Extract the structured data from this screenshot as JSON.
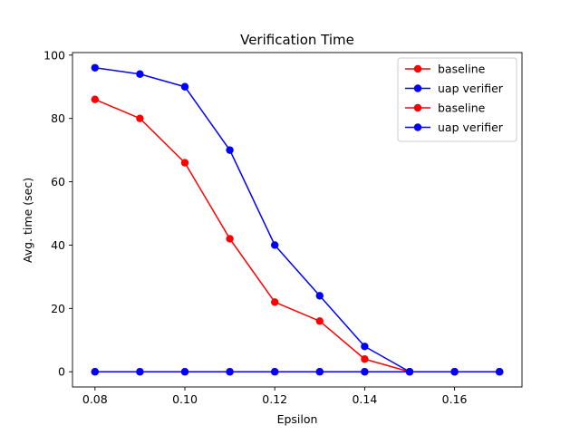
{
  "chart_data": {
    "type": "line",
    "title": "Verification Time",
    "xlabel": "Epsilon",
    "ylabel": "Avg. time (sec)",
    "xlim": [
      0.075,
      0.175
    ],
    "ylim": [
      -4.8,
      100.8
    ],
    "xticks": [
      0.08,
      0.1,
      0.12,
      0.14,
      0.16
    ],
    "xtick_labels": [
      "0.08",
      "0.10",
      "0.12",
      "0.14",
      "0.16"
    ],
    "yticks": [
      0,
      20,
      40,
      60,
      80,
      100
    ],
    "ytick_labels": [
      "0",
      "20",
      "40",
      "60",
      "80",
      "100"
    ],
    "grid": false,
    "legend_position": "top-right",
    "x": [
      0.08,
      0.09,
      0.1,
      0.11,
      0.12,
      0.13,
      0.14,
      0.15,
      0.16,
      0.17
    ],
    "series": [
      {
        "name": "baseline",
        "color": "#ff0000",
        "values": [
          86,
          80,
          66,
          42,
          22,
          16,
          4,
          0,
          0,
          0
        ]
      },
      {
        "name": "uap verifier",
        "color": "#0000ff",
        "values": [
          96,
          94,
          90,
          70,
          40,
          24,
          8,
          0,
          0,
          0
        ]
      },
      {
        "name": "baseline",
        "color": "#ff0000",
        "values": [
          0,
          0,
          0,
          0,
          0,
          0,
          0,
          0,
          0,
          0
        ]
      },
      {
        "name": "uap verifier",
        "color": "#0000ff",
        "values": [
          0,
          0,
          0,
          0,
          0,
          0,
          0,
          0,
          0,
          0
        ]
      }
    ]
  }
}
